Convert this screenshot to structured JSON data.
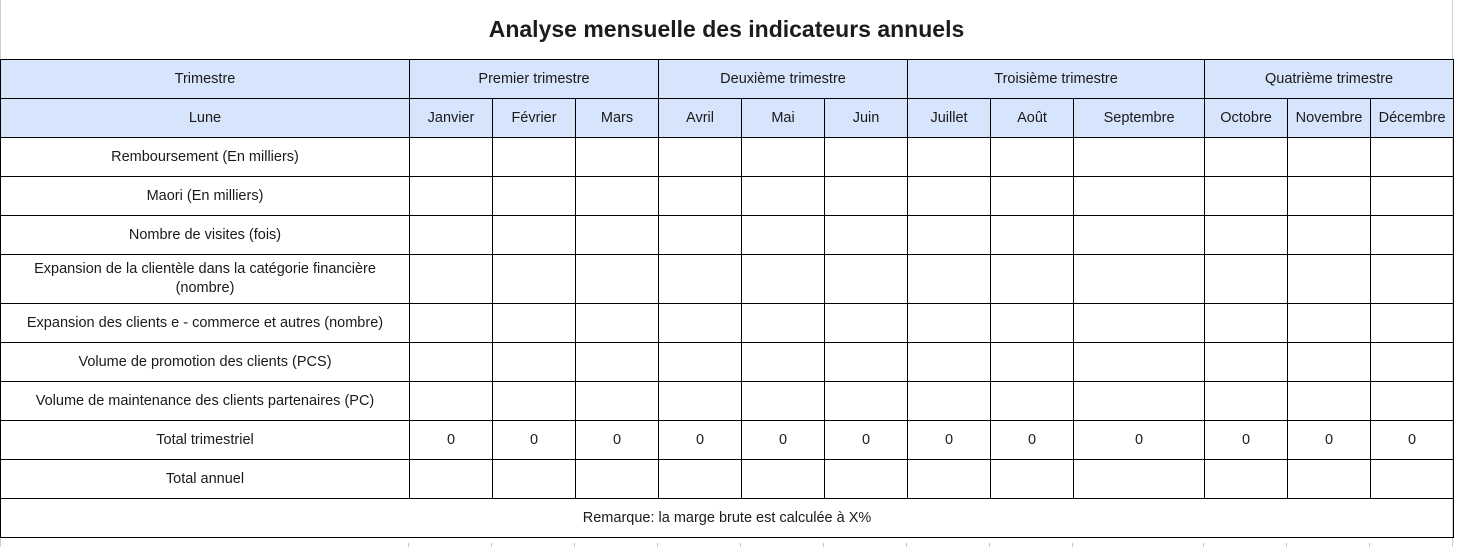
{
  "title": "Analyse mensuelle des indicateurs annuels",
  "header_row_1": {
    "label": "Trimestre",
    "quarters": [
      "Premier trimestre",
      "Deuxième trimestre",
      "Troisième trimestre",
      "Quatrième trimestre"
    ]
  },
  "header_row_2": {
    "label": "Lune",
    "months": [
      "Janvier",
      "Février",
      "Mars",
      "Avril",
      "Mai",
      "Juin",
      "Juillet",
      "Août",
      "Septembre",
      "Octobre",
      "Novembre",
      "Décembre"
    ]
  },
  "rows": [
    {
      "label": "Remboursement (En milliers)",
      "values": [
        "",
        "",
        "",
        "",
        "",
        "",
        "",
        "",
        "",
        "",
        "",
        ""
      ]
    },
    {
      "label": "Maori (En milliers)",
      "values": [
        "",
        "",
        "",
        "",
        "",
        "",
        "",
        "",
        "",
        "",
        "",
        ""
      ]
    },
    {
      "label": "Nombre de visites (fois)",
      "values": [
        "",
        "",
        "",
        "",
        "",
        "",
        "",
        "",
        "",
        "",
        "",
        ""
      ]
    },
    {
      "label": "Expansion de la clientèle dans la catégorie financière (nombre)",
      "values": [
        "",
        "",
        "",
        "",
        "",
        "",
        "",
        "",
        "",
        "",
        "",
        ""
      ]
    },
    {
      "label": "Expansion des clients e - commerce et autres (nombre)",
      "values": [
        "",
        "",
        "",
        "",
        "",
        "",
        "",
        "",
        "",
        "",
        "",
        ""
      ]
    },
    {
      "label": "Volume de promotion des clients (PCS)",
      "values": [
        "",
        "",
        "",
        "",
        "",
        "",
        "",
        "",
        "",
        "",
        "",
        ""
      ]
    },
    {
      "label": "Volume de maintenance des clients partenaires (PC)",
      "values": [
        "",
        "",
        "",
        "",
        "",
        "",
        "",
        "",
        "",
        "",
        "",
        ""
      ]
    },
    {
      "label": "Total trimestriel",
      "values": [
        "0",
        "0",
        "0",
        "0",
        "0",
        "0",
        "0",
        "0",
        "0",
        "0",
        "0",
        "0"
      ]
    },
    {
      "label": "Total annuel",
      "values": [
        "",
        "",
        "",
        "",
        "",
        "",
        "",
        "",
        "",
        "",
        "",
        ""
      ]
    }
  ],
  "note": "Remarque: la marge brute est calculée à X%"
}
